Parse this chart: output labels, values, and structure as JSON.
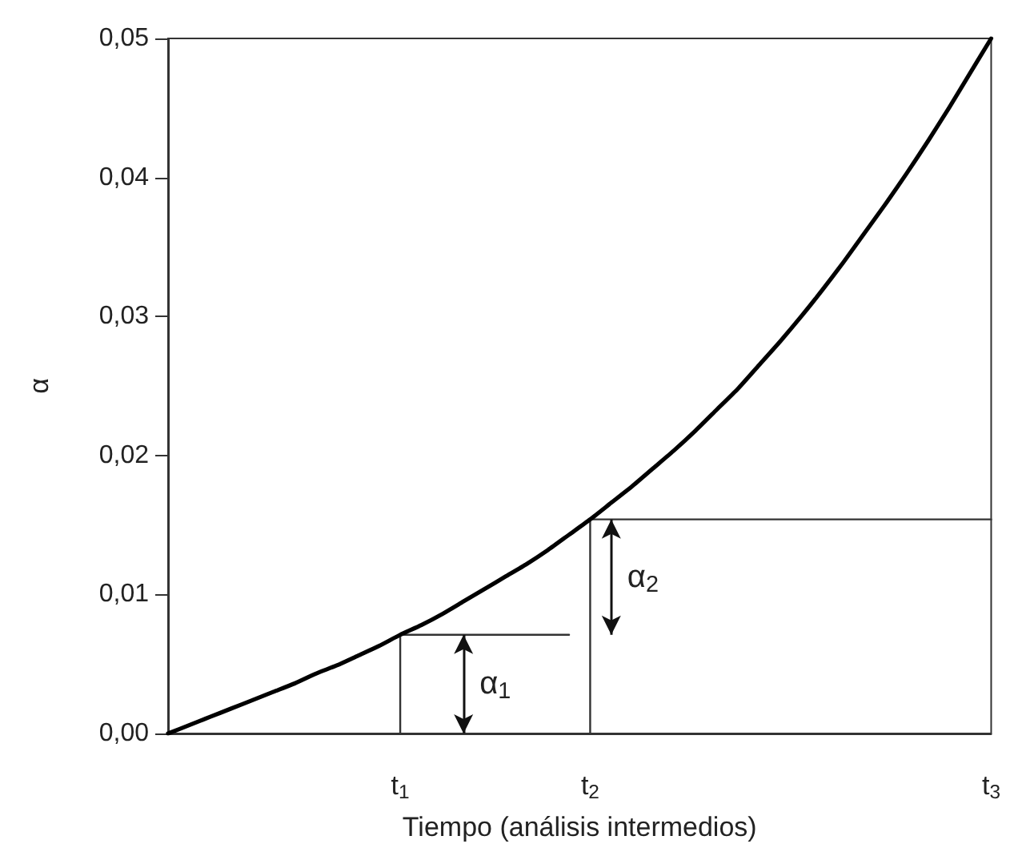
{
  "chart_data": {
    "type": "line",
    "xlabel": "Tiempo (análisis intermedios)",
    "ylabel": "α",
    "ylim": [
      0,
      0.05
    ],
    "categories": [
      null,
      null,
      null,
      null,
      null,
      null,
      null,
      null,
      null,
      null,
      null,
      "t$_{1}$",
      null,
      null,
      null,
      null,
      null,
      null,
      null,
      null,
      "t$_{2}$",
      null,
      null,
      null,
      null,
      null,
      null,
      null,
      null,
      null,
      null,
      null,
      null,
      null,
      null,
      null,
      null,
      null,
      null,
      "t$_{3}$"
    ],
    "yticks": [
      {
        "value": 0,
        "label": "0,00"
      },
      {
        "value": 0.01,
        "label": "0,01"
      },
      {
        "value": 0.02,
        "label": "0,02"
      },
      {
        "value": 0.03,
        "label": "0,03"
      },
      {
        "value": 0.04,
        "label": "0,04"
      },
      {
        "value": 0.05,
        "label": "0,05"
      }
    ],
    "series": [
      {
        "color": "#000000",
        "values": [
          0,
          0.0006,
          0.0012,
          0.0018,
          0.0024,
          0.003,
          0.0036,
          0.0043,
          0.0049,
          0.0056,
          0.0063,
          0.0071,
          0.0078,
          0.0086,
          0.0095,
          0.0104,
          0.0113,
          0.0122,
          0.0132,
          0.0143,
          0.0154,
          0.0166,
          0.0178,
          0.0191,
          0.0204,
          0.0218,
          0.0233,
          0.0248,
          0.0265,
          0.0282,
          0.03,
          0.0319,
          0.0339,
          0.036,
          0.0381,
          0.0403,
          0.0426,
          0.045,
          0.0475,
          0.05
        ]
      },
      {
        "color": "#333333",
        "values": [
          null,
          null,
          null,
          null,
          null,
          null,
          null,
          null,
          null,
          null,
          null,
          0.0071,
          0.0071,
          0.0071,
          0.0071,
          0.0071,
          0.0071,
          0.0071,
          0.0071,
          0.0071,
          null,
          null,
          null,
          null,
          null,
          null,
          null,
          null,
          null,
          null,
          null,
          null,
          null,
          null,
          null,
          null,
          null,
          null,
          null,
          null
        ]
      },
      {
        "color": "#333333",
        "values": [
          null,
          null,
          null,
          null,
          null,
          null,
          null,
          null,
          null,
          null,
          null,
          null,
          null,
          null,
          null,
          null,
          null,
          null,
          null,
          null,
          0.0154,
          0.0154,
          0.0154,
          0.0154,
          0.0154,
          0.0154,
          0.0154,
          0.0154,
          0.0154,
          0.0154,
          0.0154,
          0.0154,
          0.0154,
          0.0154,
          0.0154,
          0.0154,
          0.0154,
          0.0154,
          0.0154,
          0.0154
        ]
      },
      {
        "color": "#333333",
        "x": [
          "t$_{1}$",
          "t$_{1}$"
        ],
        "values": [
          0,
          0.0071
        ]
      },
      {
        "color": "#333333",
        "x": [
          "t$_{2}$",
          "t$_{2}$"
        ],
        "values": [
          0,
          0.0154
        ]
      }
    ],
    "annotations": [
      "α$_{1}$",
      "α$_{2}$"
    ],
    "grid": false,
    "marker": "none",
    "line_style": "solid"
  }
}
